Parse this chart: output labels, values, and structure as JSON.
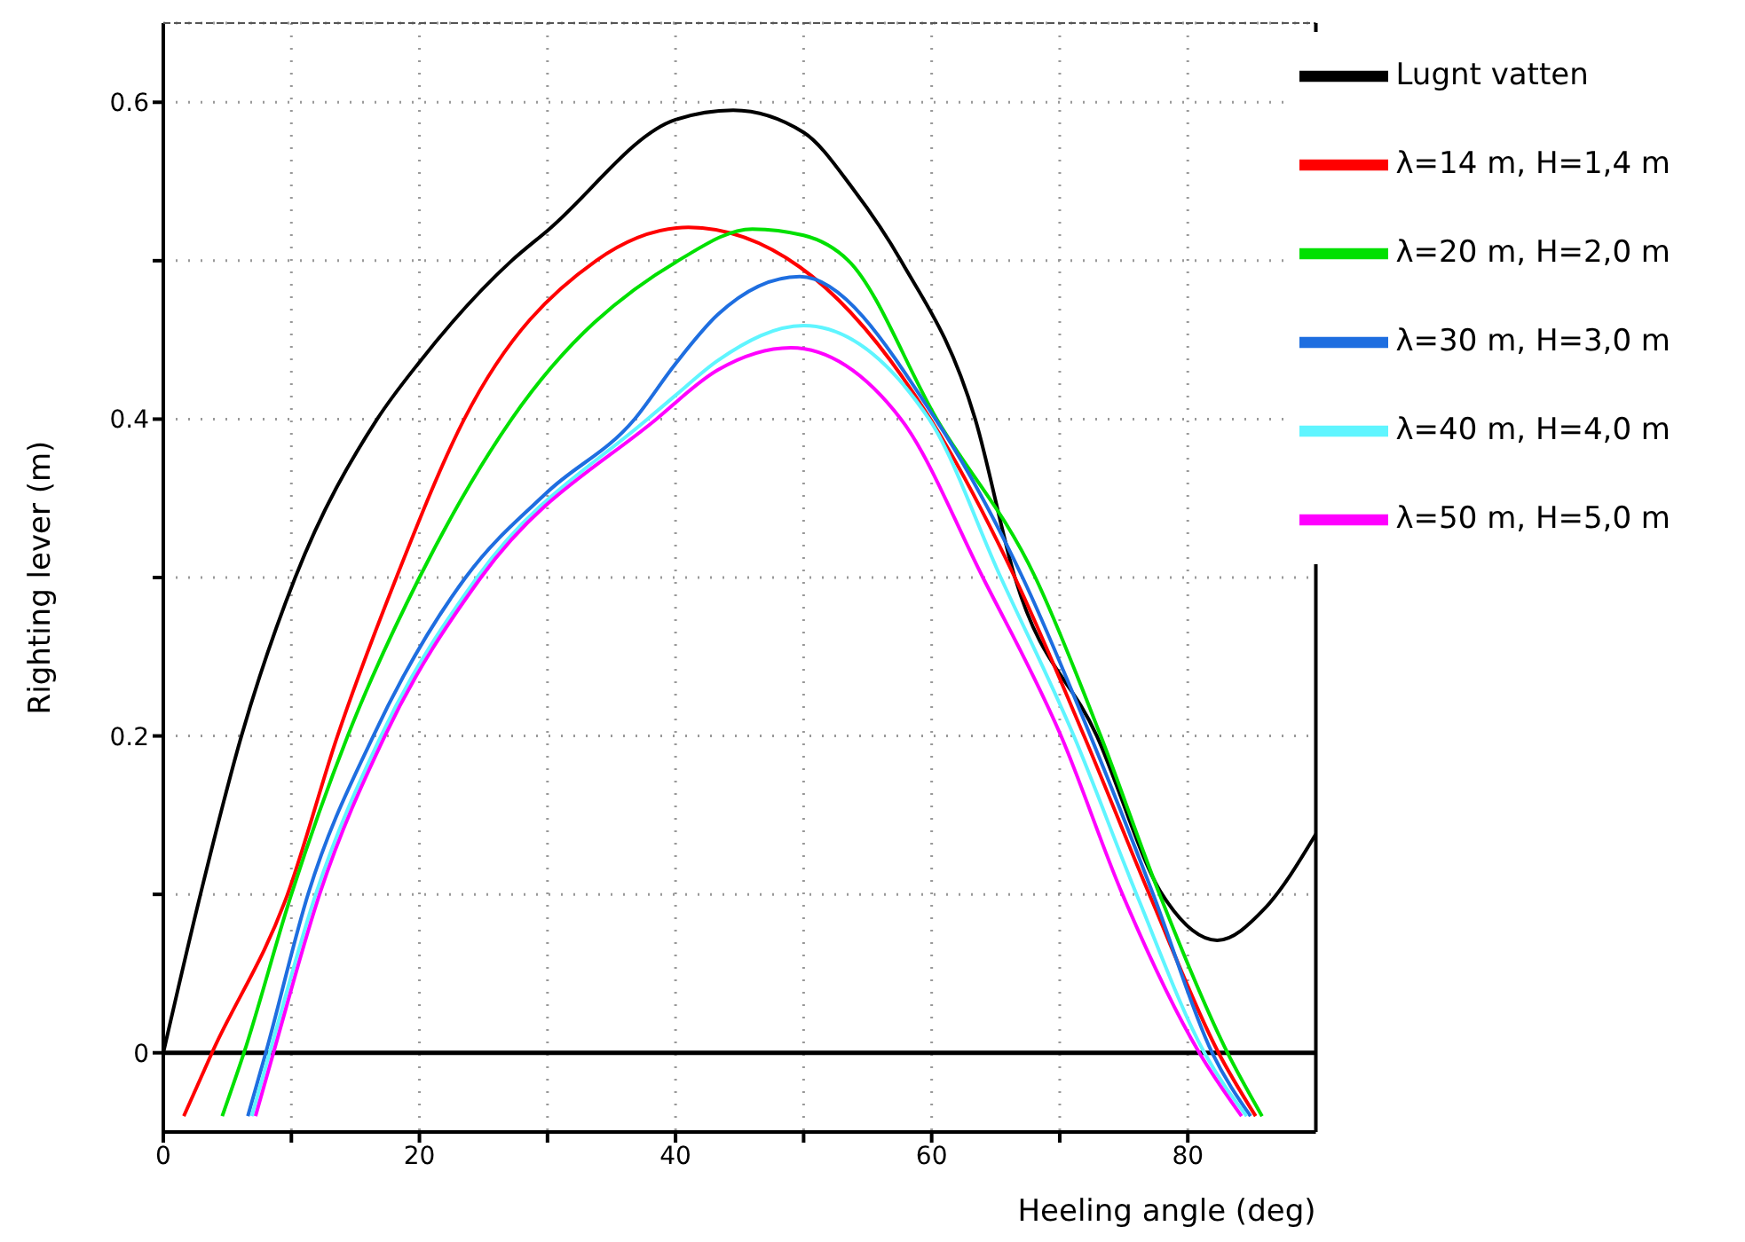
{
  "chart_data": {
    "type": "line",
    "xlabel": "Heeling angle (deg)",
    "ylabel": "Righting lever (m)",
    "xlim": [
      0,
      90
    ],
    "xticks": [
      0,
      {
        "value": 10,
        "label": null
      },
      20,
      {
        "value": 30,
        "label": null
      },
      40,
      {
        "value": 50,
        "label": null
      },
      60,
      {
        "value": 70,
        "label": null
      },
      80
    ],
    "ylim": [
      -0.05,
      0.65
    ],
    "yticks": [
      0,
      {
        "value": 0.1,
        "label": null
      },
      0.2,
      {
        "value": 0.3,
        "label": null
      },
      0.4,
      {
        "value": 0.5,
        "label": null
      },
      0.6
    ],
    "grid": true,
    "legend": "top right",
    "marker": "none",
    "line_style": "solid",
    "ref_lines": [
      {
        "axis": "y",
        "value": 0,
        "color": "#000000"
      }
    ],
    "series": [
      {
        "name": "Lugnt vatten",
        "color": "#000000",
        "x": [
          0,
          2.9,
          6.1,
          10.3,
          16.7,
          20,
          27.2,
          30,
          40,
          44.5,
          50,
          53.8,
          57.6,
          63.4,
          66.5,
          72.9,
          78,
          82.3,
          86,
          90
        ],
        "values": [
          0,
          0.1,
          0.2,
          0.3,
          0.4,
          0.436,
          0.5,
          0.519,
          0.589,
          0.595,
          0.581,
          0.546,
          0.5,
          0.4,
          0.3,
          0.2,
          0.1,
          0.071,
          0.091,
          0.138
        ]
      },
      {
        "name": "λ=14 m, H=1,4 m",
        "color": "#ff0000",
        "x": [
          1.6,
          3.8,
          9.7,
          13.6,
          18.2,
          23.5,
          33.8,
          41,
          49.7,
          59.9,
          66.5,
          71.9,
          77,
          82.4,
          85.3
        ],
        "values": [
          -0.04,
          0,
          0.1,
          0.2,
          0.3,
          0.4,
          0.5,
          0.521,
          0.496,
          0.4,
          0.3,
          0.2,
          0.1,
          0,
          -0.04
        ]
      },
      {
        "name": "λ=20 m, H=2,0 m",
        "color": "#00e000",
        "x": [
          4.6,
          6.3,
          10,
          14.4,
          20,
          27.2,
          40.2,
          46,
          50,
          53.5,
          60.4,
          68.1,
          73.2,
          77.8,
          83.1,
          85.8
        ],
        "values": [
          -0.04,
          0,
          0.1,
          0.2,
          0.3,
          0.4,
          0.5,
          0.52,
          0.516,
          0.5,
          0.4,
          0.3,
          0.2,
          0.1,
          0,
          -0.04
        ]
      },
      {
        "name": "λ=30 m, H=3,0 m",
        "color": "#1e6ee0",
        "x": [
          6.6,
          8,
          11.3,
          16.4,
          23.6,
          30,
          36.8,
          40,
          43.3,
          49.7,
          60.3,
          67.1,
          72.4,
          77.3,
          81.9,
          84.9
        ],
        "values": [
          -0.04,
          0,
          0.1,
          0.2,
          0.3,
          0.354,
          0.4,
          0.435,
          0.466,
          0.49,
          0.4,
          0.3,
          0.2,
          0.1,
          0,
          -0.04
        ]
      },
      {
        "name": "λ=40 m, H=4,0 m",
        "color": "#5ff5ff",
        "x": [
          6.9,
          8.3,
          11.9,
          17,
          24.5,
          37.8,
          40,
          43.3,
          50,
          59.8,
          65.4,
          71.1,
          76,
          81.3,
          84.6
        ],
        "values": [
          -0.04,
          0,
          0.1,
          0.2,
          0.3,
          0.4,
          0.415,
          0.437,
          0.459,
          0.4,
          0.3,
          0.2,
          0.1,
          0,
          -0.04
        ]
      },
      {
        "name": "λ=50 m, H=5,0 m",
        "color": "#ff00ff",
        "x": [
          7.2,
          8.6,
          12.2,
          17.3,
          24.8,
          38.5,
          43.3,
          49,
          57.6,
          64,
          70.1,
          74.9,
          80.9,
          84.2
        ],
        "values": [
          -0.04,
          0,
          0.1,
          0.2,
          0.3,
          0.4,
          0.431,
          0.445,
          0.4,
          0.3,
          0.2,
          0.1,
          0,
          -0.04
        ]
      }
    ]
  }
}
